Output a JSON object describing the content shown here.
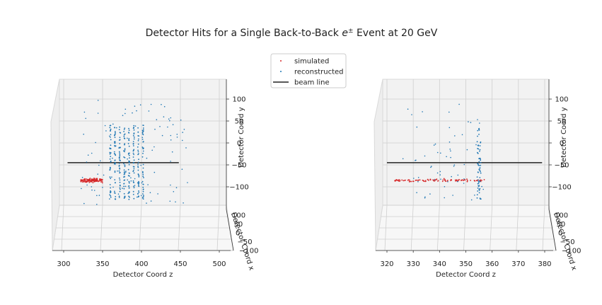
{
  "chart_data": {
    "type": "scatter",
    "title": "Detector Hits for a Single Back-to-Back e± Event at 20  GeV",
    "title_prefix": "Detector Hits for a Single Back-to-Back ",
    "title_symbol": "e",
    "title_superscript": "±",
    "title_suffix": " Event at 20  GeV",
    "legend": {
      "placement": "top-center",
      "entries": [
        {
          "label": "simulated",
          "marker": "point",
          "color": "#d62728"
        },
        {
          "label": "reconstructed",
          "marker": "point",
          "color": "#1f77b4"
        },
        {
          "label": "beam line",
          "marker": "line",
          "color": "#222222"
        }
      ]
    },
    "panels": [
      {
        "xlabel": "Detector Coord z",
        "ylabel": "Detector Coord y",
        "depthlabel": "Detector Coord x",
        "xlim": [
          290,
          510
        ],
        "ylim": [
          -140,
          140
        ],
        "xticks": [
          "300",
          "350",
          "400",
          "450",
          "500"
        ],
        "yticks": [
          "100",
          "50",
          "0",
          "−50",
          "−100"
        ],
        "depthticks": [
          "100",
          "50",
          "0",
          "−50",
          "−100"
        ],
        "beam_line": {
          "z": [
            305,
            448
          ],
          "y": -45
        },
        "series": [
          {
            "name": "simulated",
            "color": "#d62728",
            "z_range": [
              322,
              350
            ],
            "y_center": -85,
            "y_spread": 8,
            "count": 130
          },
          {
            "name": "reconstructed",
            "color": "#1f77b4",
            "layers_z": [
              360,
              366,
              372,
              378,
              384,
              390,
              396,
              402
            ],
            "layer_y_range": [
              -130,
              40
            ],
            "points_per_layer": 38,
            "scatter_z_range": [
              320,
              460
            ],
            "scatter_y_range": [
              -140,
              100
            ],
            "scatter_count": 110
          }
        ]
      },
      {
        "xlabel": "Detector Coord z",
        "ylabel": "Detector Coord y",
        "depthlabel": "Detector Coord x",
        "xlim": [
          317,
          382
        ],
        "ylim": [
          -140,
          140
        ],
        "xticks": [
          "320",
          "330",
          "340",
          "350",
          "360",
          "370",
          "380"
        ],
        "yticks": [
          "100",
          "50",
          "0",
          "−50",
          "−100"
        ],
        "depthticks": [
          "100",
          "50",
          "0",
          "−50",
          "−100"
        ],
        "beam_line": {
          "z": [
            320,
            379
          ],
          "y": -45
        },
        "series": [
          {
            "name": "simulated",
            "color": "#d62728",
            "z_range": [
              323,
              357
            ],
            "y_center": -85,
            "y_spread": 5,
            "count": 95
          },
          {
            "name": "reconstructed",
            "color": "#1f77b4",
            "layers_z": [
              355
            ],
            "layer_y_range": [
              -130,
              35
            ],
            "points_per_layer": 60,
            "scatter_z_range": [
              325,
              357
            ],
            "scatter_y_range": [
              -140,
              90
            ],
            "scatter_count": 60
          }
        ]
      }
    ]
  }
}
